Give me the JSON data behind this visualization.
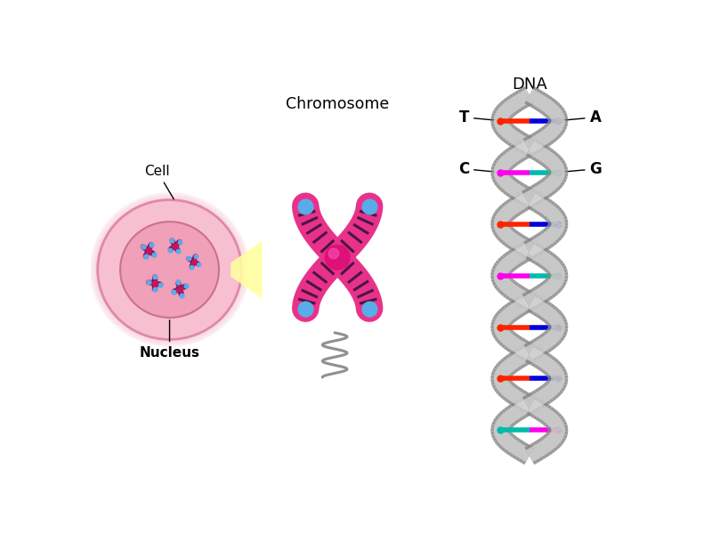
{
  "bg_color": "#ffffff",
  "cell_outer_color": "#f7c0d0",
  "cell_inner_color": "#f9d0dc",
  "nucleus_color": "#f0a0b8",
  "cell_label": "Cell",
  "nucleus_label": "Nucleus",
  "chromosome_label": "Chromosome",
  "dna_label": "DNA",
  "chr_pink": "#e8328a",
  "chr_dark": "#4a1545",
  "chr_blue": "#5aace8",
  "centromere_color": "#dd1177",
  "dna_backbone_light": "#d8d8d8",
  "dna_backbone_dark": "#888888",
  "annotation_color": "#000000",
  "yellow_arrow": "#ffffa0",
  "wave_color": "#909090"
}
